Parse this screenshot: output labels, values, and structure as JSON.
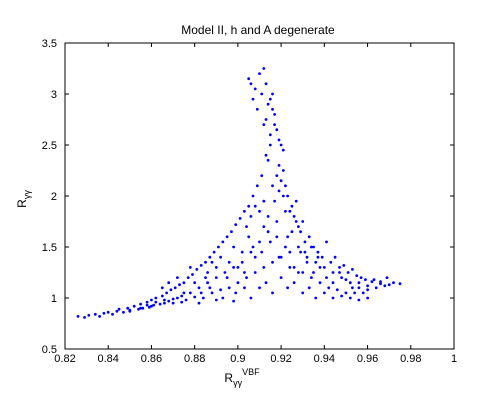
{
  "chart_data": {
    "type": "scatter",
    "title": "Model II, h and A degenerate",
    "xlabel": {
      "base": "R",
      "sub": "γγ",
      "sup": "VBF"
    },
    "ylabel": {
      "base": "R",
      "sub": "γγ"
    },
    "xlim": [
      0.82,
      1.0
    ],
    "ylim": [
      0.5,
      3.5
    ],
    "xticks": [
      0.82,
      0.84,
      0.86,
      0.88,
      0.9,
      0.92,
      0.94,
      0.96,
      0.98,
      1
    ],
    "xtick_labels": [
      "0.82",
      "0.84",
      "0.86",
      "0.88",
      "0.9",
      "0.92",
      "0.94",
      "0.96",
      "0.98",
      "1"
    ],
    "yticks": [
      0.5,
      1,
      1.5,
      2,
      2.5,
      3,
      3.5
    ],
    "ytick_labels": [
      "0.5",
      "1",
      "1.5",
      "2",
      "2.5",
      "3",
      "3.5"
    ],
    "grid": false,
    "marker_color": "#0000ff",
    "series": [
      {
        "points": [
          [
            0.826,
            0.82
          ],
          [
            0.829,
            0.81
          ],
          [
            0.831,
            0.83
          ],
          [
            0.834,
            0.84
          ],
          [
            0.836,
            0.82
          ],
          [
            0.838,
            0.85
          ],
          [
            0.84,
            0.86
          ],
          [
            0.842,
            0.84
          ],
          [
            0.844,
            0.87
          ],
          [
            0.845,
            0.89
          ],
          [
            0.847,
            0.86
          ],
          [
            0.849,
            0.9
          ],
          [
            0.85,
            0.88
          ],
          [
            0.852,
            0.92
          ],
          [
            0.854,
            0.89
          ],
          [
            0.855,
            0.94
          ],
          [
            0.856,
            0.9
          ],
          [
            0.858,
            0.96
          ],
          [
            0.859,
            0.91
          ],
          [
            0.86,
            0.98
          ],
          [
            0.861,
            0.93
          ],
          [
            0.862,
            1.0
          ],
          [
            0.864,
            0.94
          ],
          [
            0.865,
            1.02
          ],
          [
            0.866,
            0.95
          ],
          [
            0.867,
            1.05
          ],
          [
            0.868,
            0.97
          ],
          [
            0.869,
            1.08
          ],
          [
            0.87,
            0.99
          ],
          [
            0.871,
            1.1
          ],
          [
            0.872,
            1.0
          ],
          [
            0.873,
            1.13
          ],
          [
            0.874,
            1.02
          ],
          [
            0.875,
            1.15
          ],
          [
            0.876,
            0.98
          ],
          [
            0.877,
            1.2
          ],
          [
            0.878,
            1.05
          ],
          [
            0.879,
            1.23
          ],
          [
            0.88,
            1.01
          ],
          [
            0.881,
            1.28
          ],
          [
            0.882,
            1.1
          ],
          [
            0.883,
            1.32
          ],
          [
            0.884,
            1.0
          ],
          [
            0.885,
            1.35
          ],
          [
            0.886,
            1.15
          ],
          [
            0.887,
            1.4
          ],
          [
            0.888,
            1.05
          ],
          [
            0.889,
            1.45
          ],
          [
            0.89,
            1.2
          ],
          [
            0.891,
            1.5
          ],
          [
            0.892,
            1.08
          ],
          [
            0.893,
            1.55
          ],
          [
            0.894,
            1.25
          ],
          [
            0.895,
            1.6
          ],
          [
            0.896,
            1.1
          ],
          [
            0.897,
            1.65
          ],
          [
            0.898,
            1.3
          ],
          [
            0.899,
            1.72
          ],
          [
            0.9,
            1.15
          ],
          [
            0.901,
            1.78
          ],
          [
            0.902,
            1.35
          ],
          [
            0.903,
            1.85
          ],
          [
            0.904,
            1.2
          ],
          [
            0.905,
            1.9
          ],
          [
            0.906,
            1.45
          ],
          [
            0.907,
            2.0
          ],
          [
            0.908,
            1.25
          ],
          [
            0.909,
            2.1
          ],
          [
            0.91,
            1.55
          ],
          [
            0.911,
            2.2
          ],
          [
            0.912,
            1.3
          ],
          [
            0.913,
            2.4
          ],
          [
            0.914,
            1.65
          ],
          [
            0.915,
            2.6
          ],
          [
            0.916,
            1.35
          ],
          [
            0.917,
            2.8
          ],
          [
            0.918,
            1.75
          ],
          [
            0.919,
            2.3
          ],
          [
            0.92,
            1.4
          ],
          [
            0.921,
            2.0
          ],
          [
            0.922,
            1.85
          ],
          [
            0.923,
            1.6
          ],
          [
            0.924,
            1.45
          ],
          [
            0.925,
            1.9
          ],
          [
            0.926,
            1.3
          ],
          [
            0.927,
            1.75
          ],
          [
            0.928,
            1.5
          ],
          [
            0.929,
            1.65
          ],
          [
            0.93,
            1.25
          ],
          [
            0.931,
            1.55
          ],
          [
            0.932,
            1.4
          ],
          [
            0.933,
            1.6
          ],
          [
            0.934,
            1.2
          ],
          [
            0.935,
            1.5
          ],
          [
            0.936,
            1.35
          ],
          [
            0.937,
            1.45
          ],
          [
            0.938,
            1.15
          ],
          [
            0.939,
            1.4
          ],
          [
            0.94,
            1.3
          ],
          [
            0.941,
            1.55
          ],
          [
            0.942,
            1.1
          ],
          [
            0.943,
            1.35
          ],
          [
            0.944,
            1.25
          ],
          [
            0.945,
            1.4
          ],
          [
            0.946,
            1.08
          ],
          [
            0.947,
            1.3
          ],
          [
            0.948,
            1.2
          ],
          [
            0.949,
            1.32
          ],
          [
            0.95,
            1.05
          ],
          [
            0.951,
            1.25
          ],
          [
            0.952,
            1.15
          ],
          [
            0.953,
            1.28
          ],
          [
            0.954,
            1.05
          ],
          [
            0.955,
            1.22
          ],
          [
            0.956,
            1.1
          ],
          [
            0.957,
            1.2
          ],
          [
            0.958,
            1.05
          ],
          [
            0.959,
            1.18
          ],
          [
            0.96,
            1.08
          ],
          [
            0.962,
            1.16
          ],
          [
            0.964,
            1.1
          ],
          [
            0.966,
            1.14
          ],
          [
            0.968,
            1.12
          ],
          [
            0.97,
            1.13
          ],
          [
            0.975,
            1.14
          ],
          [
            0.905,
            3.15
          ],
          [
            0.906,
            3.1
          ],
          [
            0.908,
            3.05
          ],
          [
            0.91,
            3.2
          ],
          [
            0.912,
            3.25
          ],
          [
            0.913,
            3.1
          ],
          [
            0.911,
            3.0
          ],
          [
            0.915,
            2.95
          ],
          [
            0.914,
            2.9
          ],
          [
            0.916,
            3.0
          ],
          [
            0.907,
            2.95
          ],
          [
            0.909,
            2.85
          ],
          [
            0.913,
            2.75
          ],
          [
            0.917,
            2.7
          ],
          [
            0.918,
            2.65
          ],
          [
            0.919,
            2.55
          ],
          [
            0.92,
            2.5
          ],
          [
            0.921,
            2.45
          ],
          [
            0.916,
            2.85
          ],
          [
            0.912,
            2.7
          ],
          [
            0.915,
            2.5
          ],
          [
            0.914,
            2.35
          ],
          [
            0.918,
            2.2
          ],
          [
            0.92,
            2.15
          ],
          [
            0.921,
            2.25
          ],
          [
            0.919,
            2.05
          ],
          [
            0.922,
            2.1
          ],
          [
            0.923,
            2.0
          ],
          [
            0.917,
            1.95
          ],
          [
            0.916,
            2.1
          ],
          [
            0.91,
            1.85
          ],
          [
            0.912,
            1.95
          ],
          [
            0.908,
            1.9
          ],
          [
            0.906,
            1.8
          ],
          [
            0.904,
            1.7
          ],
          [
            0.924,
            1.85
          ],
          [
            0.926,
            1.8
          ],
          [
            0.928,
            1.7
          ],
          [
            0.93,
            1.75
          ],
          [
            0.927,
            1.95
          ],
          [
            0.885,
            1.2
          ],
          [
            0.887,
            1.1
          ],
          [
            0.89,
            1.3
          ],
          [
            0.892,
            1.4
          ],
          [
            0.895,
            1.2
          ],
          [
            0.898,
            1.5
          ],
          [
            0.9,
            1.3
          ],
          [
            0.902,
            1.45
          ],
          [
            0.905,
            1.6
          ],
          [
            0.908,
            1.4
          ],
          [
            0.88,
            1.15
          ],
          [
            0.883,
            1.05
          ],
          [
            0.886,
            1.25
          ],
          [
            0.888,
            1.35
          ],
          [
            0.893,
            1.0
          ],
          [
            0.896,
            1.35
          ],
          [
            0.899,
            1.05
          ],
          [
            0.903,
            1.1
          ],
          [
            0.906,
            1.0
          ],
          [
            0.91,
            1.1
          ],
          [
            0.913,
            1.15
          ],
          [
            0.916,
            1.05
          ],
          [
            0.92,
            1.2
          ],
          [
            0.923,
            1.1
          ],
          [
            0.926,
            1.15
          ],
          [
            0.93,
            1.05
          ],
          [
            0.933,
            1.1
          ],
          [
            0.936,
            1.0
          ],
          [
            0.94,
            1.05
          ],
          [
            0.944,
            1.0
          ],
          [
            0.948,
            1.02
          ],
          [
            0.952,
            1.0
          ],
          [
            0.956,
            0.98
          ],
          [
            0.96,
            1.0
          ],
          [
            0.865,
            1.1
          ],
          [
            0.868,
            1.15
          ],
          [
            0.872,
            1.2
          ],
          [
            0.875,
            1.05
          ],
          [
            0.878,
            1.3
          ],
          [
            0.87,
            0.95
          ],
          [
            0.86,
            0.92
          ],
          [
            0.855,
            0.9
          ],
          [
            0.85,
            0.87
          ],
          [
            0.862,
            0.96
          ],
          [
            0.858,
            0.93
          ],
          [
            0.866,
            0.98
          ],
          [
            0.874,
            0.96
          ],
          [
            0.882,
            0.95
          ],
          [
            0.89,
            0.98
          ],
          [
            0.898,
            0.97
          ],
          [
            0.912,
            1.7
          ],
          [
            0.914,
            1.8
          ],
          [
            0.918,
            1.6
          ],
          [
            0.922,
            1.5
          ],
          [
            0.925,
            1.65
          ],
          [
            0.929,
            1.45
          ],
          [
            0.932,
            1.35
          ],
          [
            0.935,
            1.25
          ],
          [
            0.938,
            1.3
          ],
          [
            0.941,
            1.2
          ],
          [
            0.944,
            1.15
          ],
          [
            0.947,
            1.25
          ],
          [
            0.95,
            1.18
          ],
          [
            0.953,
            1.1
          ],
          [
            0.956,
            1.15
          ],
          [
            0.96,
            1.12
          ],
          [
            0.963,
            1.18
          ],
          [
            0.966,
            1.16
          ],
          [
            0.969,
            1.2
          ],
          [
            0.972,
            1.15
          ],
          [
            0.903,
            1.25
          ],
          [
            0.907,
            1.5
          ],
          [
            0.911,
            1.45
          ],
          [
            0.915,
            1.55
          ],
          [
            0.919,
            1.4
          ],
          [
            0.924,
            1.3
          ],
          [
            0.928,
            1.25
          ],
          [
            0.931,
            1.45
          ],
          [
            0.934,
            1.5
          ],
          [
            0.937,
            1.4
          ]
        ]
      }
    ]
  }
}
